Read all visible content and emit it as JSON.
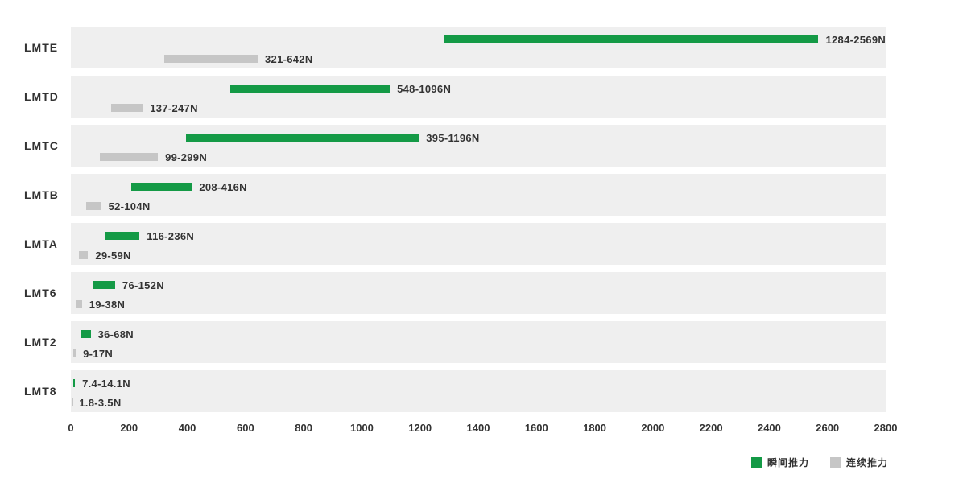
{
  "chart_data": {
    "type": "bar",
    "orientation": "horizontal",
    "unit": "N",
    "title": "",
    "grid": false,
    "categories": [
      "LMTE",
      "LMTD",
      "LMTC",
      "LMTB",
      "LMTA",
      "LMT6",
      "LMT2",
      "LMT8"
    ],
    "series": [
      {
        "name": "瞬间推力",
        "color": "#149a46",
        "ranges": [
          [
            1284,
            2569
          ],
          [
            548,
            1096
          ],
          [
            395,
            1196
          ],
          [
            208,
            416
          ],
          [
            116,
            236
          ],
          [
            76,
            152
          ],
          [
            36,
            68
          ],
          [
            7.4,
            14.1
          ]
        ],
        "labels": [
          "1284-2569N",
          "548-1096N",
          "395-1196N",
          "208-416N",
          "116-236N",
          "76-152N",
          "36-68N",
          "7.4-14.1N"
        ]
      },
      {
        "name": "连续推力",
        "color": "#c6c6c6",
        "ranges": [
          [
            321,
            642
          ],
          [
            137,
            247
          ],
          [
            99,
            299
          ],
          [
            52,
            104
          ],
          [
            29,
            59
          ],
          [
            19,
            38
          ],
          [
            9,
            17
          ],
          [
            1.8,
            3.5
          ]
        ],
        "labels": [
          "321-642N",
          "137-247N",
          "99-299N",
          "52-104N",
          "29-59N",
          "19-38N",
          "9-17N",
          "1.8-3.5N"
        ]
      }
    ],
    "x_axis": {
      "min": 0,
      "max": 2800,
      "ticks": [
        0,
        200,
        400,
        600,
        800,
        1000,
        1200,
        1400,
        1600,
        1800,
        2000,
        2200,
        2400,
        2600,
        2800
      ],
      "tick_labels": [
        "0",
        "200",
        "400",
        "600",
        "800",
        "1000",
        "1200",
        "1400",
        "1600",
        "1800",
        "2000",
        "2200",
        "2400",
        "2600",
        "2800"
      ]
    },
    "legend": {
      "position": "bottom-right",
      "items": [
        {
          "label": "瞬间推力",
          "color": "#149a46"
        },
        {
          "label": "连续推力",
          "color": "#c6c6c6"
        }
      ]
    },
    "colors": {
      "band_background": "#efefef",
      "text": "#333333",
      "page_background": "#ffffff"
    }
  }
}
